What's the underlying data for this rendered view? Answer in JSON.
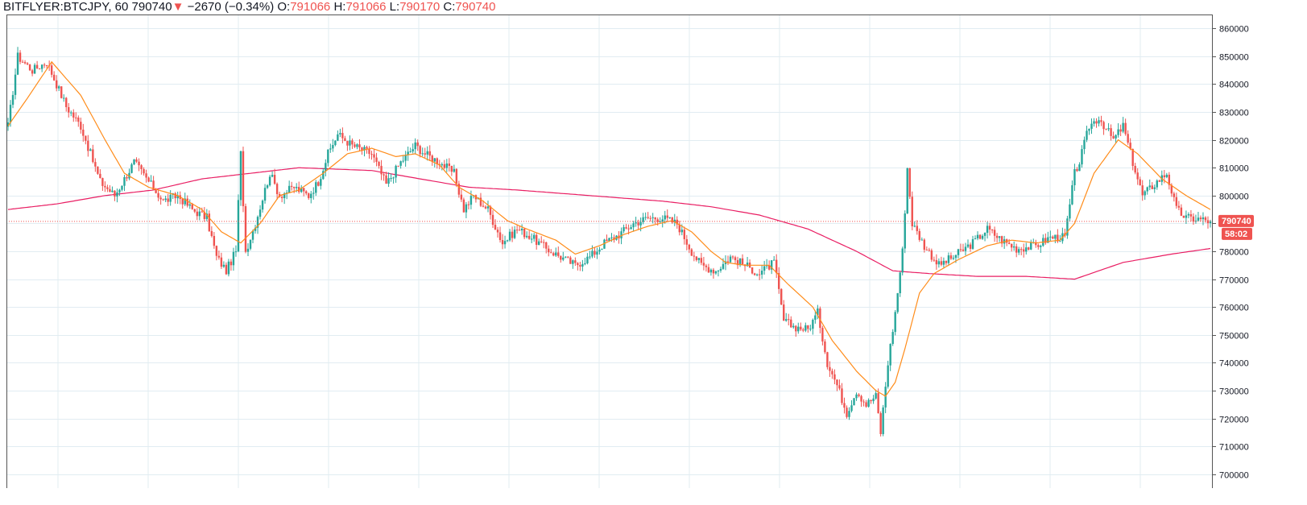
{
  "header": {
    "symbol": "BITFLYER:BTCJPY, 60",
    "last": "790740",
    "change": "−2670 (−0.34%)",
    "o_label": "O:",
    "o_value": "791066",
    "h_label": "H:",
    "h_value": "791066",
    "l_label": "L:",
    "l_value": "790170",
    "c_label": "C:",
    "c_value": "790740"
  },
  "colors": {
    "up": "#26a69a",
    "down": "#ef5350",
    "ma_fast": "#ff8c1a",
    "ma_slow": "#e91e63",
    "grid": "#e1ecf2",
    "axis": "#555555"
  },
  "chart_data": {
    "type": "candlestick",
    "ylim": [
      695000,
      865000
    ],
    "y_ticks": [
      700000,
      710000,
      720000,
      730000,
      740000,
      750000,
      760000,
      770000,
      780000,
      790000,
      800000,
      810000,
      820000,
      830000,
      840000,
      850000,
      860000
    ],
    "y_tick_labels": [
      "700000",
      "710000",
      "720000",
      "730000",
      "740000",
      "750000",
      "760000",
      "770000",
      "780000",
      "790000",
      "800000",
      "810000",
      "820000",
      "830000",
      "840000",
      "850000",
      "860000"
    ],
    "grid": true,
    "last_price": 790740,
    "last_price_label": "790740",
    "countdown_label": "58:02",
    "close_path": [
      [
        0,
        825000
      ],
      [
        4,
        850000
      ],
      [
        10,
        845000
      ],
      [
        16,
        848000
      ],
      [
        24,
        832000
      ],
      [
        30,
        825000
      ],
      [
        38,
        805000
      ],
      [
        44,
        800000
      ],
      [
        52,
        812000
      ],
      [
        58,
        805000
      ],
      [
        64,
        798000
      ],
      [
        70,
        800000
      ],
      [
        76,
        795000
      ],
      [
        82,
        792000
      ],
      [
        86,
        778000
      ],
      [
        90,
        773000
      ],
      [
        94,
        780000
      ],
      [
        96,
        815000
      ],
      [
        98,
        780000
      ],
      [
        102,
        790000
      ],
      [
        108,
        808000
      ],
      [
        112,
        800000
      ],
      [
        118,
        803000
      ],
      [
        124,
        800000
      ],
      [
        128,
        805000
      ],
      [
        132,
        815000
      ],
      [
        136,
        822000
      ],
      [
        142,
        818000
      ],
      [
        150,
        815000
      ],
      [
        156,
        804000
      ],
      [
        162,
        812000
      ],
      [
        168,
        818000
      ],
      [
        172,
        815000
      ],
      [
        178,
        812000
      ],
      [
        184,
        808000
      ],
      [
        188,
        795000
      ],
      [
        192,
        800000
      ],
      [
        198,
        795000
      ],
      [
        204,
        783000
      ],
      [
        210,
        788000
      ],
      [
        216,
        785000
      ],
      [
        222,
        781000
      ],
      [
        228,
        778000
      ],
      [
        234,
        775000
      ],
      [
        240,
        778000
      ],
      [
        246,
        783000
      ],
      [
        252,
        786000
      ],
      [
        258,
        790000
      ],
      [
        264,
        792000
      ],
      [
        270,
        792000
      ],
      [
        276,
        790000
      ],
      [
        282,
        780000
      ],
      [
        286,
        775000
      ],
      [
        292,
        773000
      ],
      [
        298,
        778000
      ],
      [
        304,
        775000
      ],
      [
        310,
        772000
      ],
      [
        316,
        776000
      ],
      [
        320,
        755000
      ],
      [
        324,
        753000
      ],
      [
        330,
        752000
      ],
      [
        334,
        758000
      ],
      [
        338,
        740000
      ],
      [
        342,
        732000
      ],
      [
        346,
        722000
      ],
      [
        350,
        730000
      ],
      [
        354,
        725000
      ],
      [
        358,
        728000
      ],
      [
        360,
        715000
      ],
      [
        363,
        740000
      ],
      [
        366,
        758000
      ],
      [
        369,
        780000
      ],
      [
        371,
        810000
      ],
      [
        373,
        790000
      ],
      [
        378,
        782000
      ],
      [
        384,
        775000
      ],
      [
        390,
        778000
      ],
      [
        398,
        783000
      ],
      [
        404,
        788000
      ],
      [
        410,
        784000
      ],
      [
        416,
        781000
      ],
      [
        424,
        782000
      ],
      [
        430,
        785000
      ],
      [
        436,
        785000
      ],
      [
        440,
        808000
      ],
      [
        442,
        812000
      ],
      [
        446,
        825000
      ],
      [
        450,
        828000
      ],
      [
        456,
        820000
      ],
      [
        460,
        825000
      ],
      [
        464,
        812000
      ],
      [
        468,
        800000
      ],
      [
        474,
        805000
      ],
      [
        478,
        808000
      ],
      [
        482,
        795000
      ],
      [
        486,
        792000
      ],
      [
        492,
        791500
      ],
      [
        496,
        790740
      ]
    ],
    "ma_fast_path": [
      [
        0,
        825000
      ],
      [
        8,
        835000
      ],
      [
        18,
        848000
      ],
      [
        30,
        836000
      ],
      [
        40,
        820000
      ],
      [
        48,
        808000
      ],
      [
        58,
        803000
      ],
      [
        70,
        800000
      ],
      [
        80,
        795000
      ],
      [
        88,
        787000
      ],
      [
        96,
        783000
      ],
      [
        104,
        790000
      ],
      [
        112,
        800000
      ],
      [
        120,
        802000
      ],
      [
        130,
        808000
      ],
      [
        140,
        815000
      ],
      [
        150,
        817000
      ],
      [
        160,
        814000
      ],
      [
        168,
        815000
      ],
      [
        178,
        811000
      ],
      [
        186,
        803000
      ],
      [
        196,
        798000
      ],
      [
        206,
        791000
      ],
      [
        214,
        788000
      ],
      [
        226,
        784000
      ],
      [
        234,
        779000
      ],
      [
        244,
        782000
      ],
      [
        254,
        786000
      ],
      [
        264,
        789000
      ],
      [
        274,
        791000
      ],
      [
        282,
        787000
      ],
      [
        290,
        780000
      ],
      [
        296,
        776000
      ],
      [
        304,
        775000
      ],
      [
        314,
        775000
      ],
      [
        322,
        768000
      ],
      [
        332,
        760000
      ],
      [
        340,
        748000
      ],
      [
        350,
        737000
      ],
      [
        358,
        730000
      ],
      [
        362,
        728000
      ],
      [
        366,
        733000
      ],
      [
        370,
        745000
      ],
      [
        376,
        765000
      ],
      [
        382,
        772000
      ],
      [
        392,
        777000
      ],
      [
        404,
        782000
      ],
      [
        414,
        784000
      ],
      [
        424,
        783000
      ],
      [
        434,
        784000
      ],
      [
        440,
        790000
      ],
      [
        448,
        808000
      ],
      [
        458,
        820000
      ],
      [
        466,
        815000
      ],
      [
        476,
        806000
      ],
      [
        486,
        800000
      ],
      [
        496,
        795000
      ]
    ],
    "ma_slow_path": [
      [
        0,
        795000
      ],
      [
        20,
        797000
      ],
      [
        40,
        800000
      ],
      [
        60,
        802000
      ],
      [
        80,
        806000
      ],
      [
        100,
        808000
      ],
      [
        120,
        810000
      ],
      [
        150,
        809000
      ],
      [
        170,
        806000
      ],
      [
        190,
        803000
      ],
      [
        210,
        802000
      ],
      [
        240,
        800000
      ],
      [
        270,
        798000
      ],
      [
        290,
        796000
      ],
      [
        310,
        793000
      ],
      [
        330,
        788000
      ],
      [
        350,
        780000
      ],
      [
        365,
        773000
      ],
      [
        380,
        772000
      ],
      [
        400,
        771000
      ],
      [
        420,
        771000
      ],
      [
        440,
        770000
      ],
      [
        450,
        773000
      ],
      [
        460,
        776000
      ],
      [
        480,
        779000
      ],
      [
        496,
        781000
      ]
    ]
  }
}
